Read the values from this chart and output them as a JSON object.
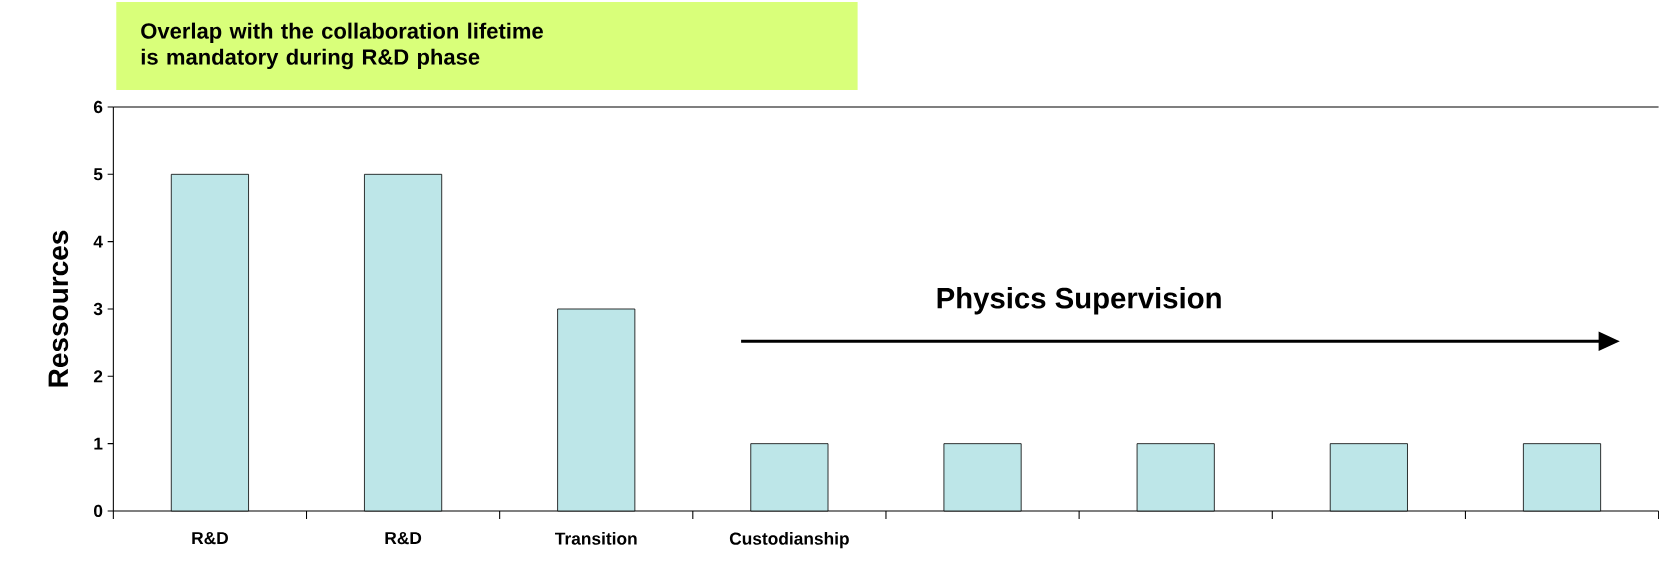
{
  "chart_data": {
    "type": "bar",
    "ylabel": "Ressources",
    "categories": [
      "R&D",
      "R&D",
      "Transition",
      "Custodianship",
      null,
      null,
      null,
      null
    ],
    "values": [
      5,
      5,
      3,
      1,
      1,
      1,
      1,
      1
    ],
    "color": "#bde6e8",
    "ylim": [
      0,
      6
    ],
    "yticks": [
      0,
      1,
      2,
      3,
      4,
      5,
      6
    ],
    "annotations": [
      "Overlap with the collaboration lifetime\nis mandatory during R&D phase",
      "Physics Supervision"
    ]
  }
}
